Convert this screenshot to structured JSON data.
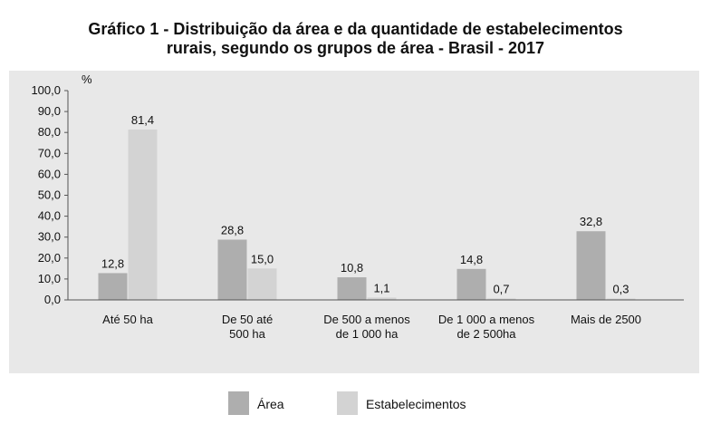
{
  "title_lines": [
    "Gráfico 1 - Distribuição da área e da quantidade de estabelecimentos",
    "rurais, segundo os grupos de área - Brasil - 2017"
  ],
  "colors": {
    "area": "#aeaeae",
    "estabelecimentos": "#d3d3d3",
    "panel": "#e8e8e8",
    "axis": "#555555"
  },
  "chart_data": {
    "type": "bar",
    "title": "Gráfico 1 - Distribuição da área e da quantidade de estabelecimentos rurais, segundo os grupos de área - Brasil - 2017",
    "ylabel": "%",
    "xlabel": "",
    "ylim": [
      0,
      100
    ],
    "yticks": [
      "0,0",
      "10,0",
      "20,0",
      "30,0",
      "40,0",
      "50,0",
      "60,0",
      "70,0",
      "80,0",
      "90,0",
      "100,0"
    ],
    "grid": false,
    "legend_position": "bottom",
    "categories": [
      [
        "Até 50 ha"
      ],
      [
        "De 50 até",
        "500 ha"
      ],
      [
        "De 500 a menos",
        "de 1 000 ha"
      ],
      [
        "De 1 000 a menos",
        "de 2 500ha"
      ],
      [
        "Mais de 2500"
      ]
    ],
    "series": [
      {
        "name": "Área",
        "values": [
          12.8,
          28.8,
          10.8,
          14.8,
          32.8
        ],
        "labels": [
          "12,8",
          "28,8",
          "10,8",
          "14,8",
          "32,8"
        ]
      },
      {
        "name": "Estabelecimentos",
        "values": [
          81.4,
          15.0,
          1.1,
          0.7,
          0.3
        ],
        "labels": [
          "81,4",
          "15,0",
          "1,1",
          "0,7",
          "0,3"
        ]
      }
    ]
  }
}
